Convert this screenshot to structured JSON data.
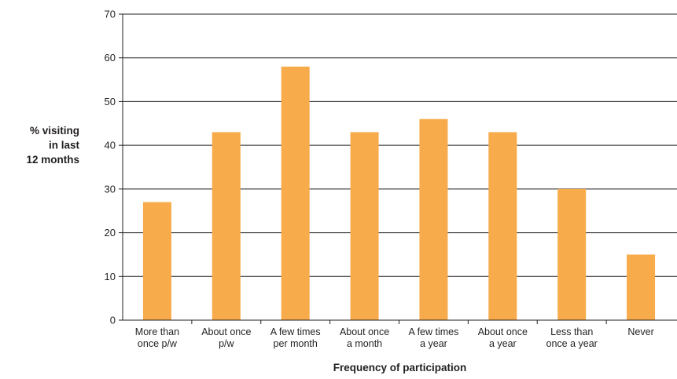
{
  "chart_data": {
    "type": "bar",
    "categories": [
      [
        "More than",
        "once p/w"
      ],
      [
        "About once",
        "p/w"
      ],
      [
        "A few times",
        "per month"
      ],
      [
        "About once",
        "a month"
      ],
      [
        "A few times",
        "a year"
      ],
      [
        "About once",
        "a year"
      ],
      [
        "Less than",
        "once a year"
      ],
      [
        "Never"
      ]
    ],
    "values": [
      27,
      43,
      58,
      43,
      46,
      43,
      30,
      15
    ],
    "title": "",
    "xlabel": "Frequency of participation",
    "ylabel": [
      "% visiting",
      "in last",
      "12 months"
    ],
    "ylim": [
      0,
      70
    ],
    "yticks": [
      0,
      10,
      20,
      30,
      40,
      50,
      60,
      70
    ],
    "grid": true,
    "colors": {
      "bar": "#f8ab4b",
      "grid": "#231f20",
      "axis": "#231f20",
      "text": "#231f20"
    }
  }
}
